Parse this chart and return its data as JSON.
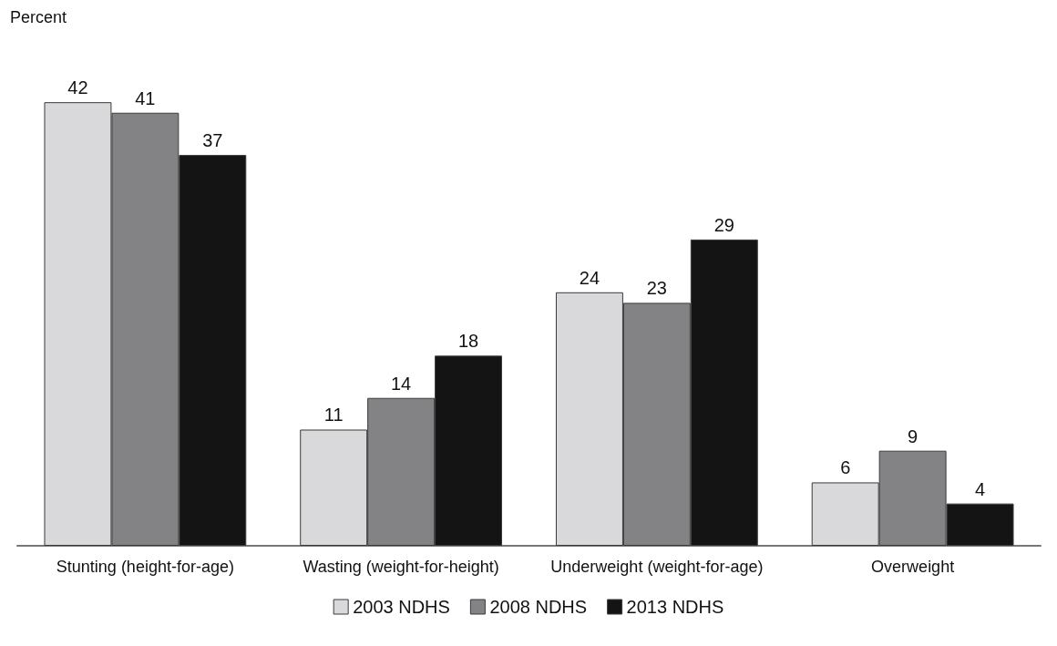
{
  "chart_data": {
    "type": "bar",
    "ylabel": "Percent",
    "categories": [
      "Stunting (height-for-age)",
      "Wasting (weight-for-height)",
      "Underweight (weight-for-age)",
      "Overweight"
    ],
    "series": [
      {
        "name": "2003 NDHS",
        "color": "#d9d9db",
        "values": [
          42,
          11,
          24,
          6
        ]
      },
      {
        "name": "2008 NDHS",
        "color": "#838385",
        "values": [
          41,
          14,
          23,
          9
        ]
      },
      {
        "name": "2013 NDHS",
        "color": "#141414",
        "values": [
          37,
          18,
          29,
          4
        ]
      }
    ],
    "data_labels": true,
    "legend": "bottom"
  }
}
